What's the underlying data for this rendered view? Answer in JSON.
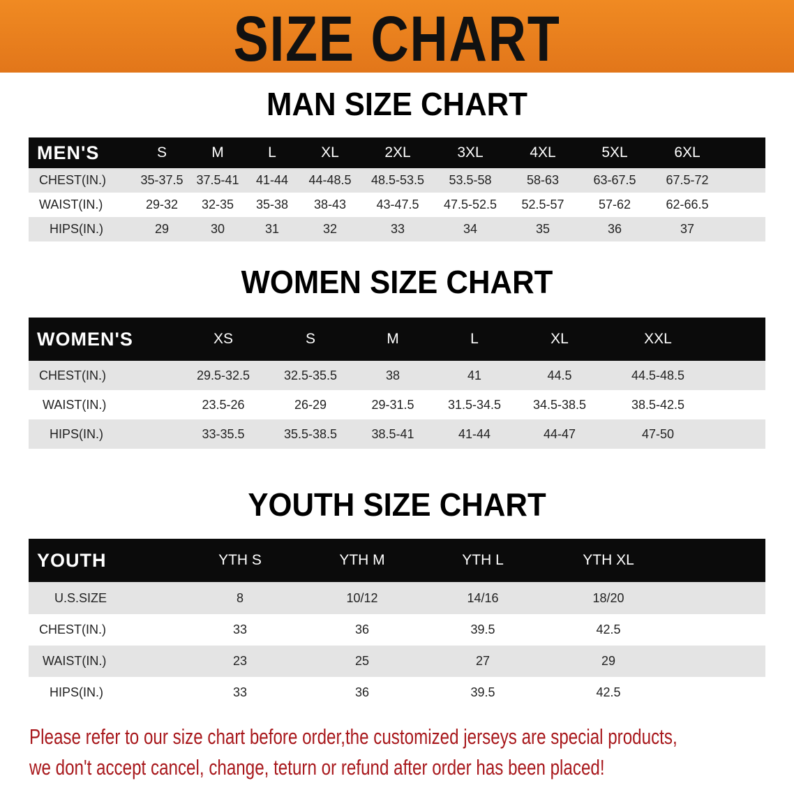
{
  "banner": {
    "title": "SIZE CHART"
  },
  "men": {
    "title": "MAN SIZE CHART",
    "header": "MEN'S",
    "sizes": [
      "S",
      "M",
      "L",
      "XL",
      "2XL",
      "3XL",
      "4XL",
      "5XL",
      "6XL"
    ],
    "rows": [
      {
        "label": "CHEST(IN.)",
        "values": [
          "35-37.5",
          "37.5-41",
          "41-44",
          "44-48.5",
          "48.5-53.5",
          "53.5-58",
          "58-63",
          "63-67.5",
          "67.5-72"
        ]
      },
      {
        "label": "WAIST(IN.)",
        "values": [
          "29-32",
          "32-35",
          "35-38",
          "38-43",
          "43-47.5",
          "47.5-52.5",
          "52.5-57",
          "57-62",
          "62-66.5"
        ]
      },
      {
        "label": "HIPS(IN.)",
        "values": [
          "29",
          "30",
          "31",
          "32",
          "33",
          "34",
          "35",
          "36",
          "37"
        ]
      }
    ]
  },
  "women": {
    "title": "WOMEN SIZE CHART",
    "header": "WOMEN'S",
    "sizes": [
      "XS",
      "S",
      "M",
      "L",
      "XL",
      "XXL"
    ],
    "rows": [
      {
        "label": "CHEST(IN.)",
        "values": [
          "29.5-32.5",
          "32.5-35.5",
          "38",
          "41",
          "44.5",
          "44.5-48.5"
        ]
      },
      {
        "label": "WAIST(IN.)",
        "values": [
          "23.5-26",
          "26-29",
          "29-31.5",
          "31.5-34.5",
          "34.5-38.5",
          "38.5-42.5"
        ]
      },
      {
        "label": "HIPS(IN.)",
        "values": [
          "33-35.5",
          "35.5-38.5",
          "38.5-41",
          "41-44",
          "44-47",
          "47-50"
        ]
      }
    ]
  },
  "youth": {
    "title": "YOUTH SIZE CHART",
    "header": "YOUTH",
    "sizes": [
      "YTH S",
      "YTH M",
      "YTH L",
      "YTH XL"
    ],
    "rows": [
      {
        "label": "U.S.SIZE",
        "values": [
          "8",
          "10/12",
          "14/16",
          "18/20"
        ]
      },
      {
        "label": "CHEST(IN.)",
        "values": [
          "33",
          "36",
          "39.5",
          "42.5"
        ]
      },
      {
        "label": "WAIST(IN.)",
        "values": [
          "23",
          "25",
          "27",
          "29"
        ]
      },
      {
        "label": "HIPS(IN.)",
        "values": [
          "33",
          "36",
          "39.5",
          "42.5"
        ]
      }
    ]
  },
  "notice": {
    "line1": "Please refer to our size chart before order,the customized jerseys are special products,",
    "line2": "we don't accept cancel, change, teturn or refund after order has been placed!"
  },
  "colors": {
    "banner": "#e8801e",
    "header_row": "#0b0b0b",
    "stripe": "#e4e4e4",
    "notice": "#a8181c"
  }
}
